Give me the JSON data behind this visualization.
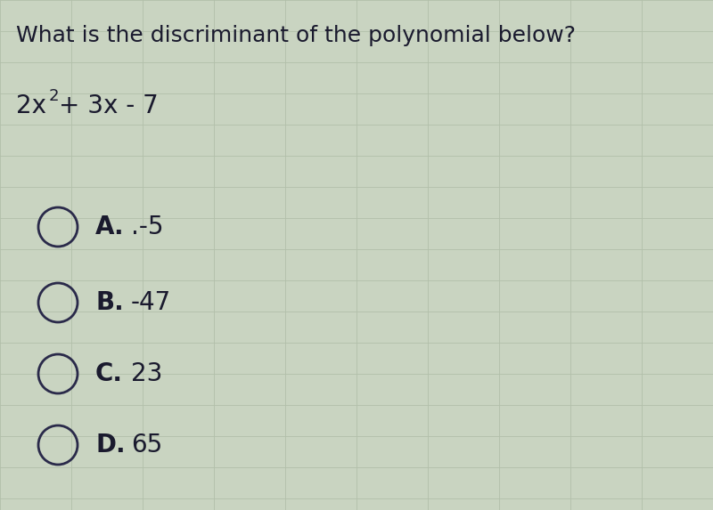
{
  "title": "What is the discriminant of the polynomial below?",
  "options": [
    {
      "letter": "A.",
      "value": ".-5"
    },
    {
      "letter": "B.",
      "value": "-47"
    },
    {
      "letter": "C.",
      "value": "23"
    },
    {
      "letter": "D.",
      "value": "65"
    }
  ],
  "bg_color": "#c8d4c0",
  "grid_color_h": "#b0be a8",
  "grid_color": "#b8c4b0",
  "text_color": "#1a1a2e",
  "circle_edge_color": "#2a2a4a",
  "title_fontsize": 18,
  "poly_fontsize": 20,
  "option_fontsize": 20,
  "fig_width": 8.0,
  "fig_height": 5.73,
  "dpi": 100
}
